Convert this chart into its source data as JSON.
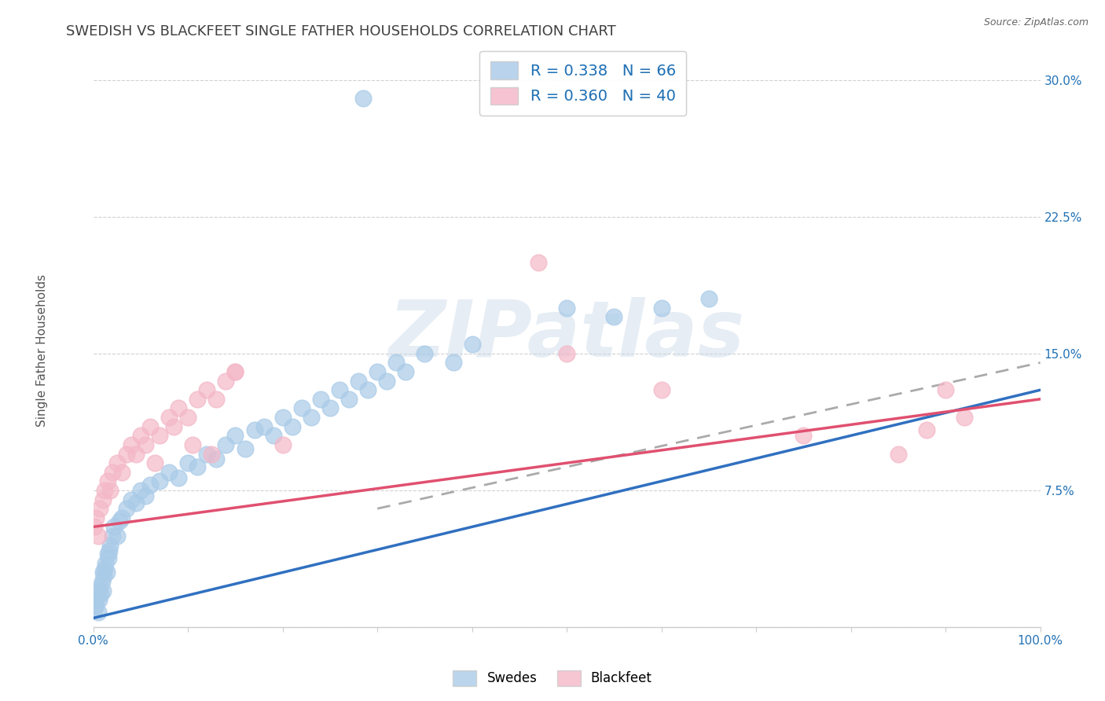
{
  "title": "SWEDISH VS BLACKFEET SINGLE FATHER HOUSEHOLDS CORRELATION CHART",
  "source": "Source: ZipAtlas.com",
  "ylabel": "Single Father Households",
  "xlim": [
    0,
    100
  ],
  "ylim": [
    0,
    32
  ],
  "ytick_vals": [
    0,
    7.5,
    15.0,
    22.5,
    30.0
  ],
  "ytick_labels": [
    "",
    "7.5%",
    "15.0%",
    "22.5%",
    "30.0%"
  ],
  "xtick_vals": [
    0,
    10,
    20,
    30,
    40,
    50,
    60,
    70,
    80,
    90,
    100
  ],
  "xtick_labels": [
    "0.0%",
    "",
    "",
    "",
    "",
    "",
    "",
    "",
    "",
    "",
    "100.0%"
  ],
  "swedes_color": "#aacbe8",
  "blackfeet_color": "#f4b8c8",
  "swedes_line_color": "#3070c0",
  "blackfeet_line_color": "#e05070",
  "dashed_line_color": "#aaaaaa",
  "swedes_R": 0.338,
  "swedes_N": 66,
  "blackfeet_R": 0.36,
  "blackfeet_N": 40,
  "legend_text_color": "#2171b5",
  "background_color": "#ffffff",
  "grid_color": "#cccccc",
  "title_fontsize": 13,
  "title_color": "#404040",
  "tick_color": "#2171b5",
  "tick_fontsize": 11,
  "ylabel_color": "#555555",
  "ylabel_fontsize": 11,
  "source_color": "#666666",
  "source_fontsize": 9,
  "watermark": "ZIPatlas",
  "swedes_x": [
    0.1,
    0.2,
    0.3,
    0.4,
    0.5,
    0.5,
    0.6,
    0.7,
    0.8,
    0.9,
    1.0,
    1.0,
    1.1,
    1.2,
    1.3,
    1.4,
    1.5,
    1.6,
    1.7,
    1.8,
    2.0,
    2.2,
    2.5,
    2.8,
    3.0,
    3.5,
    4.0,
    4.5,
    5.0,
    5.5,
    6.0,
    7.0,
    8.0,
    9.0,
    10.0,
    11.0,
    12.0,
    13.0,
    14.0,
    15.0,
    16.0,
    17.0,
    18.0,
    19.0,
    20.0,
    21.0,
    22.0,
    23.0,
    24.0,
    25.0,
    26.0,
    27.0,
    28.0,
    29.0,
    30.0,
    31.0,
    32.0,
    33.0,
    35.0,
    38.0,
    40.0,
    50.0,
    55.0,
    60.0,
    65.0,
    28.5
  ],
  "swedes_y": [
    1.0,
    1.5,
    1.2,
    1.8,
    2.0,
    0.8,
    1.5,
    2.2,
    1.8,
    2.5,
    2.0,
    3.0,
    2.8,
    3.2,
    3.5,
    3.0,
    4.0,
    3.8,
    4.2,
    4.5,
    5.0,
    5.5,
    5.0,
    5.8,
    6.0,
    6.5,
    7.0,
    6.8,
    7.5,
    7.2,
    7.8,
    8.0,
    8.5,
    8.2,
    9.0,
    8.8,
    9.5,
    9.2,
    10.0,
    10.5,
    9.8,
    10.8,
    11.0,
    10.5,
    11.5,
    11.0,
    12.0,
    11.5,
    12.5,
    12.0,
    13.0,
    12.5,
    13.5,
    13.0,
    14.0,
    13.5,
    14.5,
    14.0,
    15.0,
    14.5,
    15.5,
    17.5,
    17.0,
    17.5,
    18.0,
    29.0
  ],
  "blackfeet_x": [
    0.1,
    0.3,
    0.5,
    0.7,
    1.0,
    1.2,
    1.5,
    1.8,
    2.0,
    2.5,
    3.0,
    3.5,
    4.0,
    5.0,
    6.0,
    7.0,
    8.0,
    9.0,
    10.0,
    11.0,
    12.0,
    13.0,
    14.0,
    15.0,
    47.0,
    50.0,
    60.0,
    75.0,
    85.0,
    88.0,
    90.0,
    92.0,
    4.5,
    5.5,
    6.5,
    8.5,
    10.5,
    12.5,
    15.0,
    20.0
  ],
  "blackfeet_y": [
    5.5,
    6.0,
    5.0,
    6.5,
    7.0,
    7.5,
    8.0,
    7.5,
    8.5,
    9.0,
    8.5,
    9.5,
    10.0,
    10.5,
    11.0,
    10.5,
    11.5,
    12.0,
    11.5,
    12.5,
    13.0,
    12.5,
    13.5,
    14.0,
    20.0,
    15.0,
    13.0,
    10.5,
    9.5,
    10.8,
    13.0,
    11.5,
    9.5,
    10.0,
    9.0,
    11.0,
    10.0,
    9.5,
    14.0,
    10.0
  ],
  "sw_trend_x0": 0,
  "sw_trend_y0": 0.5,
  "sw_trend_x1": 100,
  "sw_trend_y1": 13.0,
  "bf_trend_x0": 0,
  "bf_trend_y0": 5.5,
  "bf_trend_x1": 100,
  "bf_trend_y1": 12.5,
  "dash_trend_x0": 30,
  "dash_trend_y0": 6.5,
  "dash_trend_x1": 100,
  "dash_trend_y1": 14.5
}
